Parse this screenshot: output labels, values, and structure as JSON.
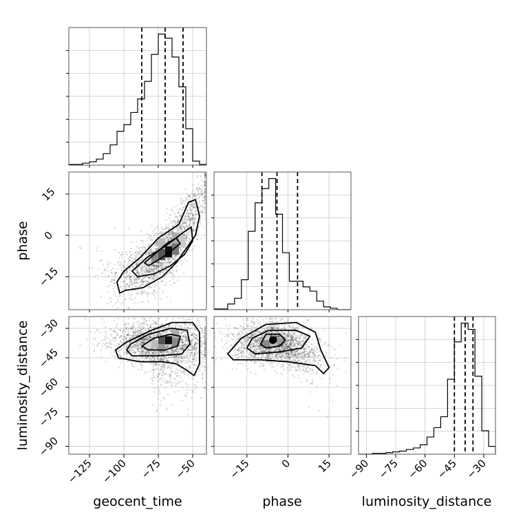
{
  "chart_data": {
    "type": "corner",
    "parameters": [
      "geocent_time",
      "phase",
      "luminosity_distance"
    ],
    "axis_labels": {
      "x": [
        "geocent_time",
        "phase",
        "luminosity_distance"
      ],
      "y": [
        "phase",
        "luminosity_distance"
      ]
    },
    "ranges": {
      "geocent_time": [
        -140,
        -40
      ],
      "phase": [
        -27,
        23
      ],
      "luminosity_distance": [
        -94,
        -24
      ]
    },
    "ticks": {
      "geocent_time": [
        -125,
        -100,
        -75,
        -50
      ],
      "phase": [
        -15,
        0,
        15
      ],
      "luminosity_distance": [
        -90,
        -75,
        -60,
        -45,
        -30
      ]
    },
    "quantiles": {
      "geocent_time": [
        -87,
        -70,
        -57
      ],
      "phase": [
        -9.5,
        -4,
        3.5
      ],
      "luminosity_distance": [
        -45,
        -39.5,
        -35.5
      ]
    },
    "histograms": {
      "geocent_time": {
        "edges": [
          -140,
          -135,
          -130,
          -125,
          -120,
          -115,
          -110,
          -105,
          -100,
          -95,
          -90,
          -85,
          -80,
          -75,
          -70,
          -65,
          -60,
          -55,
          -50,
          -45,
          -40
        ],
        "counts": [
          0.5,
          0.5,
          1.5,
          2.5,
          4.5,
          8.5,
          15,
          25,
          30,
          39,
          49,
          62,
          82,
          97,
          94,
          80,
          58,
          27,
          3,
          0.5
        ]
      },
      "phase": {
        "edges": [
          -27,
          -24.5,
          -22,
          -19.5,
          -17,
          -14.5,
          -12,
          -9.5,
          -7,
          -4.5,
          -2,
          0.5,
          3,
          5.5,
          8,
          10.5,
          13,
          15.5,
          18,
          20.5,
          23
        ],
        "counts": [
          0.5,
          0.5,
          4,
          8,
          21,
          55,
          75,
          85,
          92,
          67,
          40,
          20,
          20,
          16,
          13,
          6,
          2,
          1,
          0,
          0
        ]
      },
      "luminosity_distance": {
        "edges": [
          -94,
          -90.5,
          -87,
          -83.5,
          -80,
          -76.5,
          -73,
          -69.5,
          -66,
          -62.5,
          -59,
          -55.5,
          -52,
          -48.5,
          -45,
          -41.5,
          -38,
          -34.5,
          -31,
          -27.5,
          -24
        ],
        "counts": [
          0,
          0,
          0.5,
          0.5,
          1,
          1.5,
          2,
          3,
          4,
          6,
          11,
          17,
          24,
          48,
          72,
          84,
          80,
          50,
          15,
          5
        ]
      }
    },
    "contours_2d": [
      {
        "x": "geocent_time",
        "y": "phase",
        "peak": [
          -70,
          -5
        ]
      },
      {
        "x": "geocent_time",
        "y": "luminosity_distance",
        "peak": [
          -70,
          -36
        ]
      },
      {
        "x": "phase",
        "y": "luminosity_distance",
        "peak": [
          -6,
          -36
        ]
      }
    ],
    "grid": true
  }
}
